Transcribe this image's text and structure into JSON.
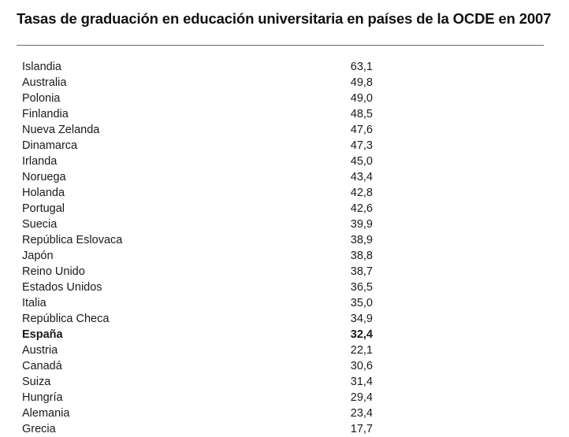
{
  "title": "Tasas de graduación en educación universitaria en países de la OCDE en 2007",
  "rows": [
    {
      "country": "Islandia",
      "value": "63,1",
      "bold": false
    },
    {
      "country": "Australia",
      "value": "49,8",
      "bold": false
    },
    {
      "country": "Polonia",
      "value": "49,0",
      "bold": false
    },
    {
      "country": "Finlandia",
      "value": "48,5",
      "bold": false
    },
    {
      "country": "Nueva Zelanda",
      "value": "47,6",
      "bold": false
    },
    {
      "country": "Dinamarca",
      "value": "47,3",
      "bold": false
    },
    {
      "country": "Irlanda",
      "value": "45,0",
      "bold": false
    },
    {
      "country": "Noruega",
      "value": "43,4",
      "bold": false
    },
    {
      "country": "Holanda",
      "value": "42,8",
      "bold": false
    },
    {
      "country": "Portugal",
      "value": "42,6",
      "bold": false
    },
    {
      "country": "Suecia",
      "value": "39,9",
      "bold": false
    },
    {
      "country": "República Eslovaca",
      "value": "38,9",
      "bold": false
    },
    {
      "country": "Japón",
      "value": "38,8",
      "bold": false
    },
    {
      "country": "Reino Unido",
      "value": "38,7",
      "bold": false
    },
    {
      "country": "Estados Unidos",
      "value": "36,5",
      "bold": false
    },
    {
      "country": "Italia",
      "value": "35,0",
      "bold": false
    },
    {
      "country": "República Checa",
      "value": "34,9",
      "bold": false
    },
    {
      "country": "España",
      "value": "32,4",
      "bold": true
    },
    {
      "country": "Austria",
      "value": "22,1",
      "bold": false
    },
    {
      "country": "Canadá",
      "value": "30,6",
      "bold": false
    },
    {
      "country": "Suiza",
      "value": "31,4",
      "bold": false
    },
    {
      "country": "Hungría",
      "value": "29,4",
      "bold": false
    },
    {
      "country": "Alemania",
      "value": "23,4",
      "bold": false
    },
    {
      "country": "Grecia",
      "value": "17,7",
      "bold": false
    }
  ]
}
